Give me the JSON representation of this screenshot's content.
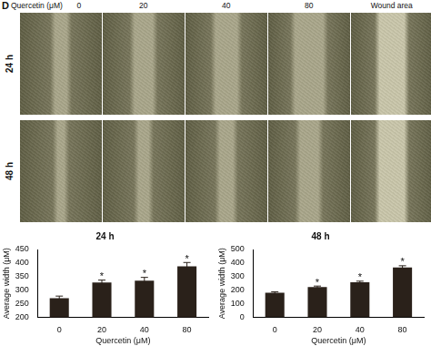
{
  "panel_label": "D",
  "image_grid": {
    "header_label": "Quercetin (μM)",
    "columns": [
      "0",
      "20",
      "40",
      "80",
      "Wound area"
    ],
    "rows": [
      "24 h",
      "48 h"
    ]
  },
  "chart_data": [
    {
      "type": "bar",
      "title": "24 h",
      "x_label": "Quercetin (μM)",
      "y_label": "Average width (μM)",
      "categories": [
        "0",
        "20",
        "40",
        "80"
      ],
      "values": [
        270,
        328,
        335,
        388
      ],
      "errors": [
        8,
        9,
        12,
        14
      ],
      "annotations": [
        null,
        "*",
        "*",
        "*"
      ],
      "color": "#2a211a",
      "ylim": [
        200,
        450
      ],
      "yticks": [
        200,
        250,
        300,
        350,
        400,
        450
      ],
      "grid": false
    },
    {
      "type": "bar",
      "title": "48 h",
      "x_label": "Quercetin (μM)",
      "y_label": "Average width (μM)",
      "categories": [
        "0",
        "20",
        "40",
        "80"
      ],
      "values": [
        180,
        222,
        258,
        368
      ],
      "errors": [
        8,
        8,
        8,
        12
      ],
      "annotations": [
        null,
        "*",
        "*",
        "*"
      ],
      "color": "#2a211a",
      "ylim": [
        0,
        500
      ],
      "yticks": [
        0,
        100,
        200,
        300,
        400,
        500
      ],
      "grid": false
    }
  ]
}
